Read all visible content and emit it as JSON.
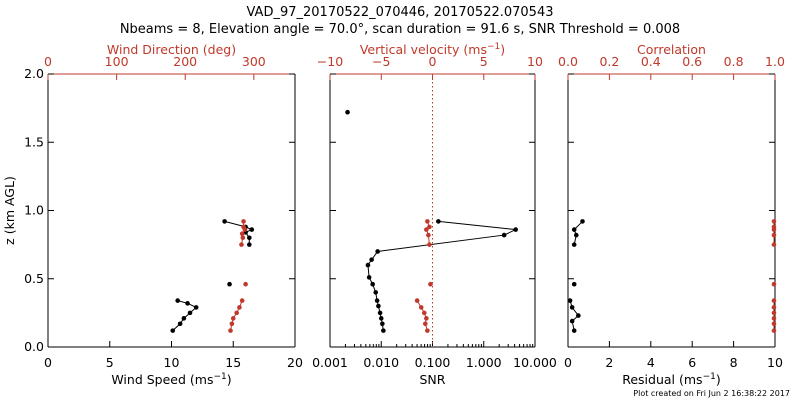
{
  "figure": {
    "title_line1": "VAD_97_20170522_070446, 20170522.070543",
    "title_line2": "Nbeams = 8, Elevation angle = 70.0°, scan duration = 91.6 s, SNR Threshold = 0.008",
    "footer": "Plot created on Fri Jun  2 16:38:22 2017",
    "colors": {
      "primary": "#000000",
      "secondary": "#c0392b"
    }
  },
  "chart_data": [
    {
      "type": "line",
      "panel": "speed-direction",
      "bottom_axis": {
        "label_main": "Wind Speed (ms",
        "label_sup": "−1",
        "label_end": ")",
        "range": [
          0,
          20
        ],
        "ticks": [
          "0",
          "5",
          "10",
          "15",
          "20"
        ],
        "tick_values": [
          0,
          5,
          10,
          15,
          20
        ],
        "scale": "linear"
      },
      "top_axis": {
        "label_main": "Wind Direction (deg)",
        "label_sup": "",
        "label_end": "",
        "range": [
          0,
          360
        ],
        "ticks": [
          "0",
          "100",
          "200",
          "300"
        ],
        "tick_values": [
          0,
          100,
          200,
          300
        ],
        "scale": "linear"
      },
      "left_axis": {
        "label_main": "z (km AGL)",
        "range": [
          0,
          2
        ],
        "ticks": [
          "0.0",
          "0.5",
          "1.0",
          "1.5",
          "2.0"
        ],
        "tick_values": [
          0,
          0.5,
          1.0,
          1.5,
          2.0
        ]
      },
      "series": [
        {
          "axis": "bottom",
          "color": "#000000",
          "style": "line-dots",
          "points": [
            [
              14.3,
              0.92
            ],
            [
              16.0,
              0.88
            ],
            [
              16.5,
              0.86
            ],
            [
              16.0,
              0.84
            ],
            [
              16.3,
              0.8
            ],
            [
              16.3,
              0.75
            ]
          ]
        },
        {
          "axis": "bottom",
          "color": "#000000",
          "style": "dots",
          "points": [
            [
              14.7,
              0.46
            ]
          ]
        },
        {
          "axis": "bottom",
          "color": "#000000",
          "style": "line-dots",
          "points": [
            [
              10.5,
              0.34
            ],
            [
              11.3,
              0.32
            ],
            [
              12.0,
              0.29
            ],
            [
              11.5,
              0.25
            ],
            [
              11.0,
              0.21
            ],
            [
              10.7,
              0.17
            ],
            [
              10.1,
              0.12
            ]
          ]
        },
        {
          "axis": "top",
          "color": "#c0392b",
          "style": "line-dots",
          "points": [
            [
              285,
              0.92
            ],
            [
              285,
              0.88
            ],
            [
              287,
              0.86
            ],
            [
              283,
              0.83
            ],
            [
              284,
              0.8
            ],
            [
              282,
              0.75
            ]
          ]
        },
        {
          "axis": "top",
          "color": "#c0392b",
          "style": "dots",
          "points": [
            [
              288,
              0.46
            ]
          ]
        },
        {
          "axis": "top",
          "color": "#c0392b",
          "style": "line-dots",
          "points": [
            [
              283,
              0.34
            ],
            [
              279,
              0.29
            ],
            [
              275,
              0.25
            ],
            [
              270,
              0.21
            ],
            [
              268,
              0.17
            ],
            [
              266,
              0.12
            ]
          ]
        }
      ]
    },
    {
      "type": "line",
      "panel": "snr-vertical-velocity",
      "bottom_axis": {
        "label_main": "SNR",
        "label_sup": "",
        "label_end": "",
        "range": [
          0.001,
          10
        ],
        "ticks": [
          "0.001",
          "0.010",
          "0.100",
          "1.000",
          "10.000"
        ],
        "tick_values": [
          0.001,
          0.01,
          0.1,
          1,
          10
        ],
        "scale": "log"
      },
      "top_axis": {
        "label_main": "Vertical velocity (ms",
        "label_sup": "−1",
        "label_end": ")",
        "range": [
          -10,
          10
        ],
        "ticks": [
          "−10",
          "−5",
          "0",
          "5",
          "10"
        ],
        "tick_values": [
          -10,
          -5,
          0,
          5,
          10
        ],
        "scale": "linear"
      },
      "left_axis": {
        "range": [
          0,
          2
        ],
        "tick_values": [
          0,
          0.5,
          1.0,
          1.5,
          2.0
        ]
      },
      "reference_line": {
        "axis": "top",
        "value": 0,
        "color": "#c0392b",
        "style": "dotted"
      },
      "series": [
        {
          "axis": "bottom",
          "color": "#000000",
          "style": "dots",
          "points": [
            [
              0.0022,
              1.72
            ]
          ]
        },
        {
          "axis": "bottom",
          "color": "#000000",
          "style": "line-dots",
          "points": [
            [
              0.13,
              0.92
            ],
            [
              4.2,
              0.86
            ],
            [
              2.5,
              0.82
            ],
            [
              0.0085,
              0.7
            ],
            [
              0.0065,
              0.64
            ],
            [
              0.0055,
              0.6
            ],
            [
              0.0058,
              0.51
            ],
            [
              0.0068,
              0.46
            ],
            [
              0.0078,
              0.4
            ],
            [
              0.0083,
              0.34
            ],
            [
              0.0088,
              0.3
            ],
            [
              0.0095,
              0.25
            ],
            [
              0.01,
              0.21
            ],
            [
              0.0105,
              0.17
            ],
            [
              0.011,
              0.12
            ]
          ]
        },
        {
          "axis": "top",
          "color": "#c0392b",
          "style": "line-dots",
          "points": [
            [
              -0.5,
              0.92
            ],
            [
              -0.3,
              0.88
            ],
            [
              -0.6,
              0.86
            ],
            [
              -0.4,
              0.82
            ],
            [
              -0.3,
              0.75
            ]
          ]
        },
        {
          "axis": "top",
          "color": "#c0392b",
          "style": "dots",
          "points": [
            [
              -0.2,
              0.46
            ]
          ]
        },
        {
          "axis": "top",
          "color": "#c0392b",
          "style": "line-dots",
          "points": [
            [
              -1.5,
              0.34
            ],
            [
              -1.1,
              0.29
            ],
            [
              -0.8,
              0.25
            ],
            [
              -0.6,
              0.21
            ],
            [
              -0.7,
              0.17
            ],
            [
              -0.5,
              0.12
            ]
          ]
        }
      ]
    },
    {
      "type": "line",
      "panel": "residual-correlation",
      "bottom_axis": {
        "label_main": "Residual (ms",
        "label_sup": "−1",
        "label_end": ")",
        "range": [
          0,
          10
        ],
        "ticks": [
          "0",
          "2",
          "4",
          "6",
          "8",
          "10"
        ],
        "tick_values": [
          0,
          2,
          4,
          6,
          8,
          10
        ],
        "scale": "linear"
      },
      "top_axis": {
        "label_main": "Correlation",
        "label_sup": "",
        "label_end": "",
        "range": [
          0,
          1
        ],
        "ticks": [
          "0.0",
          "0.2",
          "0.4",
          "0.6",
          "0.8",
          "1.0"
        ],
        "tick_values": [
          0,
          0.2,
          0.4,
          0.6,
          0.8,
          1.0
        ],
        "scale": "linear"
      },
      "left_axis": {
        "range": [
          0,
          2
        ],
        "tick_values": [
          0,
          0.5,
          1.0,
          1.5,
          2.0
        ]
      },
      "series": [
        {
          "axis": "bottom",
          "color": "#000000",
          "style": "line-dots",
          "points": [
            [
              0.7,
              0.92
            ],
            [
              0.3,
              0.86
            ],
            [
              0.4,
              0.82
            ],
            [
              0.3,
              0.75
            ]
          ]
        },
        {
          "axis": "bottom",
          "color": "#000000",
          "style": "dots",
          "points": [
            [
              0.3,
              0.46
            ]
          ]
        },
        {
          "axis": "bottom",
          "color": "#000000",
          "style": "line-dots",
          "points": [
            [
              0.1,
              0.34
            ],
            [
              0.2,
              0.29
            ],
            [
              0.5,
              0.23
            ],
            [
              0.2,
              0.19
            ],
            [
              0.3,
              0.12
            ]
          ]
        },
        {
          "axis": "top",
          "color": "#c0392b",
          "style": "line-dots",
          "points": [
            [
              0.995,
              0.92
            ],
            [
              0.995,
              0.88
            ],
            [
              0.995,
              0.86
            ],
            [
              0.995,
              0.82
            ],
            [
              0.995,
              0.75
            ]
          ]
        },
        {
          "axis": "top",
          "color": "#c0392b",
          "style": "dots",
          "points": [
            [
              0.995,
              0.46
            ]
          ]
        },
        {
          "axis": "top",
          "color": "#c0392b",
          "style": "line-dots",
          "points": [
            [
              0.995,
              0.34
            ],
            [
              0.995,
              0.29
            ],
            [
              0.995,
              0.25
            ],
            [
              0.995,
              0.21
            ],
            [
              0.995,
              0.17
            ],
            [
              0.995,
              0.12
            ]
          ]
        }
      ]
    }
  ]
}
